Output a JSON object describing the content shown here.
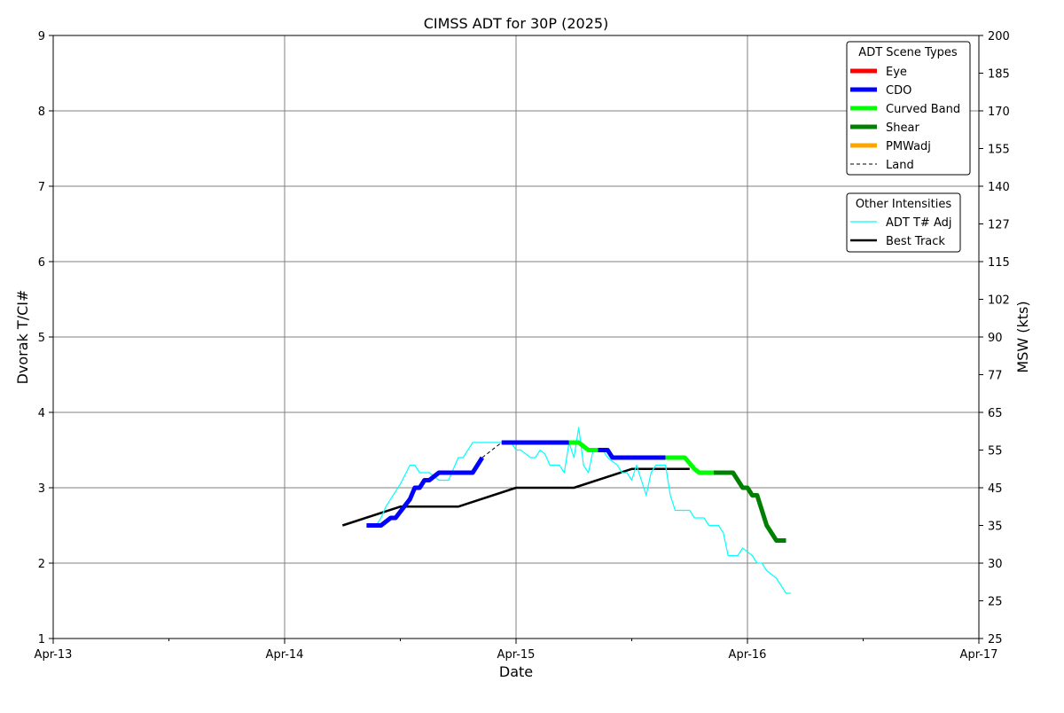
{
  "chart_data": {
    "type": "line",
    "title": "CIMSS ADT for 30P (2025)",
    "xlabel": "Date",
    "ylabel_left": "Dvorak T/CI#",
    "ylabel_right": "MSW (kts)",
    "x_ticks": [
      "Apr-13",
      "Apr-14",
      "Apr-15",
      "Apr-16",
      "Apr-17"
    ],
    "x_range_days": [
      "Apr-13",
      "Apr-17"
    ],
    "ylim": [
      1,
      9
    ],
    "y_ticks": [
      "1",
      "2",
      "3",
      "4",
      "5",
      "6",
      "7",
      "8",
      "9"
    ],
    "y2_ticks": [
      "25",
      "25",
      "30",
      "35",
      "45",
      "55",
      "65",
      "77",
      "90",
      "102",
      "115",
      "127",
      "140",
      "155",
      "170",
      "185",
      "200"
    ],
    "grid": true,
    "legend_scene": {
      "title": "ADT Scene Types",
      "placement": "top-right",
      "entries": [
        {
          "label": "Eye",
          "color": "#ff0000"
        },
        {
          "label": "CDO",
          "color": "#0000ff"
        },
        {
          "label": "Curved Band",
          "color": "#00ff00"
        },
        {
          "label": "Shear",
          "color": "#008000"
        },
        {
          "label": "PMWadj",
          "color": "#ffa500"
        },
        {
          "label": "Land",
          "color": "#000000"
        }
      ]
    },
    "legend_other": {
      "title": "Other Intensities",
      "placement": "top-right",
      "entries": [
        {
          "label": "ADT T# Adj",
          "color": "#00ffff"
        },
        {
          "label": "Best Track",
          "color": "#000000"
        }
      ]
    },
    "series": [
      {
        "name": "Best Track",
        "color": "#000000",
        "points": [
          [
            "Apr-14 06:00",
            2.5
          ],
          [
            "Apr-14 12:00",
            2.75
          ],
          [
            "Apr-14 18:00",
            2.75
          ],
          [
            "Apr-15 00:00",
            3.0
          ],
          [
            "Apr-15 06:00",
            3.0
          ],
          [
            "Apr-15 12:00",
            3.25
          ],
          [
            "Apr-15 18:00",
            3.25
          ]
        ]
      },
      {
        "name": "ADT T# Adj",
        "color": "#00ffff",
        "points": [
          [
            "Apr-14 09:30",
            2.5
          ],
          [
            "Apr-14 10:00",
            2.6
          ],
          [
            "Apr-14 10:30",
            2.75
          ],
          [
            "Apr-14 11:00",
            2.85
          ],
          [
            "Apr-14 12:00",
            3.05
          ],
          [
            "Apr-14 13:00",
            3.3
          ],
          [
            "Apr-14 13:30",
            3.3
          ],
          [
            "Apr-14 14:00",
            3.2
          ],
          [
            "Apr-14 15:00",
            3.2
          ],
          [
            "Apr-14 16:00",
            3.1
          ],
          [
            "Apr-14 17:00",
            3.1
          ],
          [
            "Apr-14 18:00",
            3.4
          ],
          [
            "Apr-14 18:30",
            3.4
          ],
          [
            "Apr-14 19:30",
            3.6
          ],
          [
            "Apr-14 23:30",
            3.6
          ],
          [
            "Apr-15 00:00",
            3.5
          ],
          [
            "Apr-15 00:30",
            3.5
          ],
          [
            "Apr-15 01:30",
            3.4
          ],
          [
            "Apr-15 02:00",
            3.4
          ],
          [
            "Apr-15 02:30",
            3.5
          ],
          [
            "Apr-15 03:00",
            3.45
          ],
          [
            "Apr-15 03:30",
            3.3
          ],
          [
            "Apr-15 04:30",
            3.3
          ],
          [
            "Apr-15 05:00",
            3.2
          ],
          [
            "Apr-15 05:30",
            3.6
          ],
          [
            "Apr-15 06:00",
            3.4
          ],
          [
            "Apr-15 06:30",
            3.8
          ],
          [
            "Apr-15 07:00",
            3.3
          ],
          [
            "Apr-15 07:30",
            3.2
          ],
          [
            "Apr-15 08:00",
            3.5
          ],
          [
            "Apr-15 09:00",
            3.5
          ],
          [
            "Apr-15 09:30",
            3.4
          ],
          [
            "Apr-15 10:30",
            3.3
          ],
          [
            "Apr-15 11:00",
            3.2
          ],
          [
            "Apr-15 11:30",
            3.2
          ],
          [
            "Apr-15 12:00",
            3.1
          ],
          [
            "Apr-15 12:30",
            3.3
          ],
          [
            "Apr-15 13:30",
            2.9
          ],
          [
            "Apr-15 14:00",
            3.2
          ],
          [
            "Apr-15 14:30",
            3.3
          ],
          [
            "Apr-15 15:30",
            3.3
          ],
          [
            "Apr-15 16:00",
            2.9
          ],
          [
            "Apr-15 16:30",
            2.7
          ],
          [
            "Apr-15 18:00",
            2.7
          ],
          [
            "Apr-15 18:30",
            2.6
          ],
          [
            "Apr-15 19:30",
            2.6
          ],
          [
            "Apr-15 20:00",
            2.5
          ],
          [
            "Apr-15 21:00",
            2.5
          ],
          [
            "Apr-15 21:30",
            2.4
          ],
          [
            "Apr-15 22:00",
            2.1
          ],
          [
            "Apr-15 23:00",
            2.1
          ],
          [
            "Apr-15 23:30",
            2.2
          ],
          [
            "Apr-16 00:30",
            2.1
          ],
          [
            "Apr-16 01:00",
            2.0
          ],
          [
            "Apr-16 01:30",
            2.0
          ],
          [
            "Apr-16 02:00",
            1.9
          ],
          [
            "Apr-16 03:00",
            1.8
          ],
          [
            "Apr-16 03:30",
            1.7
          ],
          [
            "Apr-16 04:00",
            1.6
          ],
          [
            "Apr-16 04:30",
            1.6
          ]
        ]
      },
      {
        "name": "CDO",
        "color": "#0000ff",
        "points": [
          [
            "Apr-14 08:30",
            2.5
          ],
          [
            "Apr-14 10:00",
            2.5
          ],
          [
            "Apr-14 11:00",
            2.6
          ],
          [
            "Apr-14 11:30",
            2.6
          ],
          [
            "Apr-14 13:00",
            2.85
          ],
          [
            "Apr-14 13:30",
            3.0
          ],
          [
            "Apr-14 14:00",
            3.0
          ],
          [
            "Apr-14 14:30",
            3.1
          ],
          [
            "Apr-14 15:00",
            3.1
          ],
          [
            "Apr-14 16:00",
            3.2
          ],
          [
            "Apr-14 17:00",
            3.2
          ],
          [
            "Apr-14 18:00",
            3.2
          ],
          [
            "Apr-14 19:30",
            3.2
          ],
          [
            "Apr-14 20:30",
            3.4
          ]
        ]
      },
      {
        "name": "Land",
        "color": "#000000",
        "points": [
          [
            "Apr-14 20:30",
            3.4
          ],
          [
            "Apr-14 22:30",
            3.6
          ]
        ]
      },
      {
        "name": "CDO",
        "color": "#0000ff",
        "points": [
          [
            "Apr-14 22:30",
            3.6
          ],
          [
            "Apr-15 05:30",
            3.6
          ]
        ]
      },
      {
        "name": "Curved Band",
        "color": "#00ff00",
        "points": [
          [
            "Apr-15 05:30",
            3.6
          ],
          [
            "Apr-15 06:30",
            3.6
          ],
          [
            "Apr-15 07:30",
            3.5
          ],
          [
            "Apr-15 08:30",
            3.5
          ]
        ]
      },
      {
        "name": "CDO",
        "color": "#0000ff",
        "points": [
          [
            "Apr-15 08:30",
            3.5
          ],
          [
            "Apr-15 09:30",
            3.5
          ],
          [
            "Apr-15 10:00",
            3.4
          ],
          [
            "Apr-15 15:30",
            3.4
          ]
        ]
      },
      {
        "name": "Curved Band",
        "color": "#00ff00",
        "points": [
          [
            "Apr-15 15:30",
            3.4
          ],
          [
            "Apr-15 17:30",
            3.4
          ],
          [
            "Apr-15 18:30",
            3.25
          ],
          [
            "Apr-15 19:00",
            3.2
          ],
          [
            "Apr-15 20:30",
            3.2
          ]
        ]
      },
      {
        "name": "Shear",
        "color": "#008000",
        "points": [
          [
            "Apr-15 20:30",
            3.2
          ],
          [
            "Apr-15 22:30",
            3.2
          ],
          [
            "Apr-15 23:30",
            3.0
          ],
          [
            "Apr-16 00:00",
            3.0
          ],
          [
            "Apr-16 00:30",
            2.9
          ],
          [
            "Apr-16 01:00",
            2.9
          ],
          [
            "Apr-16 02:00",
            2.5
          ],
          [
            "Apr-16 02:30",
            2.4
          ],
          [
            "Apr-16 03:00",
            2.3
          ],
          [
            "Apr-16 04:00",
            2.3
          ]
        ]
      }
    ]
  }
}
